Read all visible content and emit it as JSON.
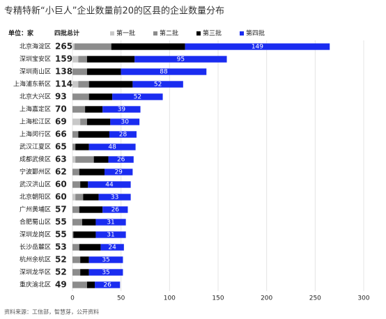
{
  "chart_data": {
    "type": "stacked-bar-horizontal",
    "title": "专精特新“小巨人”企业数量前20的区县的企业数量分布",
    "unit_label": "单位：家",
    "totals_header": "四批总计",
    "source": "资料来源：工信部，智慧芽，公开资料",
    "categories": [
      "北京海淀区",
      "深圳宝安区",
      "深圳南山区",
      "上海浦东新区",
      "北京大兴区",
      "上海嘉定区",
      "上海松江区",
      "上海闵行区",
      "武汉江夏区",
      "成都武侯区",
      "宁波鄞州区",
      "武汉洪山区",
      "北京朝阳区",
      "广州黄埔区",
      "合肥蜀山区",
      "深圳龙岗区",
      "长沙岳麓区",
      "杭州余杭区",
      "深圳龙华区",
      "重庆渝北区"
    ],
    "totals": [
      265,
      159,
      138,
      114,
      93,
      70,
      69,
      66,
      65,
      63,
      62,
      60,
      60,
      57,
      55,
      55,
      53,
      52,
      52,
      49
    ],
    "series": [
      {
        "name": "第一批",
        "color": "#c8c8c8",
        "values": [
          2,
          6,
          0,
          6,
          0,
          0,
          8,
          0,
          0,
          3,
          0,
          0,
          3,
          0,
          0,
          0,
          0,
          0,
          0,
          0
        ]
      },
      {
        "name": "第二批",
        "color": "#8c8c8c",
        "values": [
          38,
          9,
          15,
          11,
          17,
          13,
          7,
          6,
          3,
          19,
          7,
          8,
          8,
          7,
          10,
          1,
          7,
          8,
          8,
          15
        ]
      },
      {
        "name": "第三批",
        "color": "#000000",
        "values": [
          76,
          49,
          35,
          45,
          24,
          18,
          24,
          32,
          14,
          15,
          26,
          8,
          16,
          24,
          14,
          23,
          22,
          9,
          9,
          8
        ]
      },
      {
        "name": "第四批",
        "color": "#1a2cf0",
        "values": [
          149,
          95,
          88,
          52,
          52,
          39,
          30,
          28,
          48,
          26,
          29,
          44,
          33,
          26,
          31,
          31,
          24,
          35,
          35,
          26
        ]
      }
    ],
    "xlim": [
      0,
      300
    ],
    "xticks": [
      0,
      50,
      100,
      150,
      200,
      250,
      300
    ],
    "grid": true
  }
}
